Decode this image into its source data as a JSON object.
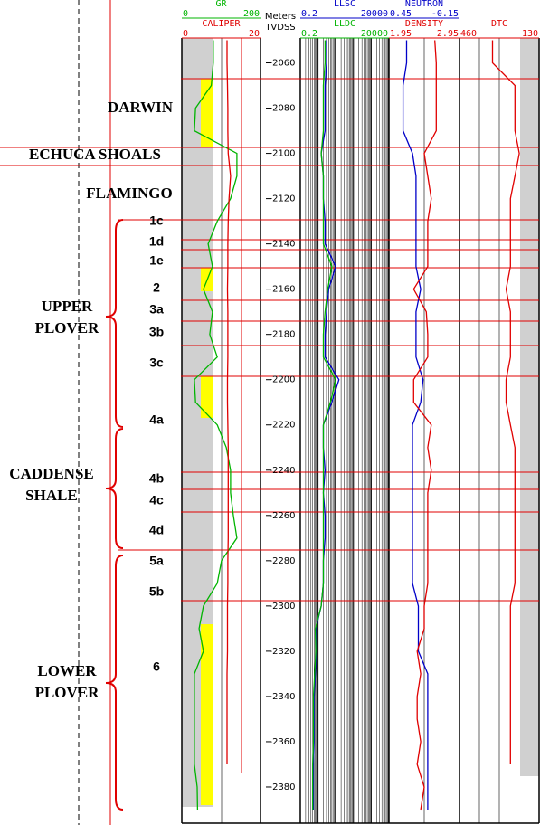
{
  "chart_data": {
    "type": "well-log",
    "depth_unit": "Meters",
    "depth_datum": "TVDSS",
    "ylim": [
      -2049,
      -2396
    ],
    "yticks": [
      -2060,
      -2080,
      -2100,
      -2120,
      -2140,
      -2160,
      -2180,
      -2200,
      -2220,
      -2240,
      -2260,
      -2280,
      -2300,
      -2320,
      -2340,
      -2360,
      -2380
    ],
    "y": [
      -2050,
      -2060,
      -2070,
      -2080,
      -2090,
      -2100,
      -2110,
      -2120,
      -2130,
      -2140,
      -2150,
      -2160,
      -2170,
      -2180,
      -2190,
      -2200,
      -2210,
      -2220,
      -2230,
      -2240,
      -2250,
      -2260,
      -2270,
      -2280,
      -2290,
      -2300,
      -2310,
      -2320,
      -2330,
      -2340,
      -2350,
      -2360,
      -2370,
      -2380,
      -2390
    ],
    "tracks": [
      {
        "series": [
          {
            "name": "GR",
            "color": "#00b400",
            "xlim": [
              0,
              200
            ],
            "log": false,
            "values": [
              80,
              80,
              75,
              35,
              32,
              140,
              140,
              124,
              90,
              67,
              78,
              55,
              78,
              71,
              90,
              32,
              35,
              90,
              113,
              124,
              124,
              131,
              140,
              101,
              90,
              55,
              44,
              55,
              32,
              32,
              32,
              32,
              32,
              39,
              40
            ]
          },
          {
            "name": "CALIPER",
            "color": "#e00000",
            "xlim": [
              0,
              20
            ],
            "log": false,
            "values": [
              11.5,
              11.5,
              11.6,
              11.7,
              11.7,
              11.8,
              12.4,
              12.0,
              11.8,
              11.7,
              11.7,
              11.6,
              11.7,
              11.7,
              11.7,
              11.6,
              11.6,
              11.7,
              11.8,
              11.8,
              11.8,
              11.8,
              11.8,
              11.7,
              11.7,
              11.6,
              11.6,
              11.6,
              11.5,
              11.5,
              11.5,
              11.5,
              11.5,
              null,
              null
            ]
          }
        ]
      },
      {
        "series": [
          {
            "name": "LLSC",
            "color": "#0000c8",
            "xlim": [
              0.2,
              20000
            ],
            "log": true,
            "values": [
              6,
              6,
              5,
              5,
              5,
              3,
              4,
              4,
              5,
              5,
              20,
              8,
              6,
              5,
              5,
              30,
              12,
              4,
              4,
              5,
              4,
              5,
              5,
              4,
              4,
              3,
              1.5,
              1.6,
              1.4,
              1.2,
              1.2,
              1.2,
              1.1,
              1.1,
              1.1
            ]
          },
          {
            "name": "LLDC",
            "color": "#00b400",
            "xlim": [
              0.2,
              20000
            ],
            "log": true,
            "values": [
              5,
              5,
              4,
              4,
              4,
              3,
              4,
              4,
              4,
              4,
              12,
              7,
              5,
              4,
              4,
              20,
              10,
              4,
              4,
              4,
              4,
              4,
              4,
              4,
              4,
              3,
              1.4,
              1.5,
              1.3,
              1.1,
              1.1,
              1.1,
              1.0,
              1.0,
              1.0
            ]
          }
        ]
      },
      {
        "series": [
          {
            "name": "NEUTRON",
            "color": "#0000c8",
            "xlim": [
              0.45,
              -0.15
            ],
            "log": false,
            "values": [
              0.3,
              0.3,
              0.33,
              0.33,
              0.33,
              0.25,
              0.22,
              0.22,
              0.22,
              0.22,
              0.22,
              0.18,
              0.22,
              0.22,
              0.22,
              0.16,
              0.18,
              0.25,
              0.25,
              0.25,
              0.25,
              0.25,
              0.25,
              0.25,
              0.25,
              0.2,
              0.2,
              0.2,
              0.12,
              0.12,
              0.12,
              0.12,
              0.12,
              0.12,
              0.12
            ]
          },
          {
            "name": "DENSITY",
            "color": "#e00000",
            "xlim": [
              1.95,
              2.95
            ],
            "log": false,
            "values": [
              2.6,
              2.62,
              2.62,
              2.62,
              2.62,
              2.45,
              2.5,
              2.55,
              2.5,
              2.5,
              2.5,
              2.3,
              2.48,
              2.5,
              2.5,
              2.3,
              2.3,
              2.55,
              2.5,
              2.55,
              2.5,
              2.5,
              2.5,
              2.5,
              2.5,
              2.45,
              2.45,
              2.35,
              2.4,
              2.35,
              2.35,
              2.4,
              2.35,
              2.45,
              2.4
            ]
          }
        ]
      },
      {
        "series": [
          {
            "name": "DTC",
            "color": "#e00000",
            "xlim": [
              460,
              130
            ],
            "log": false,
            "values": [
              323,
              323,
              230,
              230,
              230,
              212,
              230,
              249,
              249,
              249,
              249,
              267,
              249,
              249,
              249,
              267,
              267,
              249,
              230,
              230,
              230,
              230,
              230,
              230,
              230,
              249,
              249,
              249,
              249,
              249,
              249,
              249,
              249,
              null,
              null
            ]
          }
        ]
      }
    ],
    "formations": [
      {
        "lines": [
          "DARWIN"
        ]
      },
      {
        "lines": [
          "ECHUCA SHOALS"
        ]
      },
      {
        "lines": [
          "FLAMINGO"
        ]
      },
      {
        "lines": [
          "UPPER",
          "PLOVER"
        ]
      },
      {
        "lines": [
          "CADDENSE",
          "SHALE"
        ]
      },
      {
        "lines": [
          "LOWER",
          "PLOVER"
        ]
      }
    ],
    "zones": [
      "1c",
      "1d",
      "1e",
      "2",
      "3a",
      "3b",
      "3c",
      "4a",
      "4b",
      "4c",
      "4d",
      "5a",
      "5b",
      "6"
    ]
  }
}
